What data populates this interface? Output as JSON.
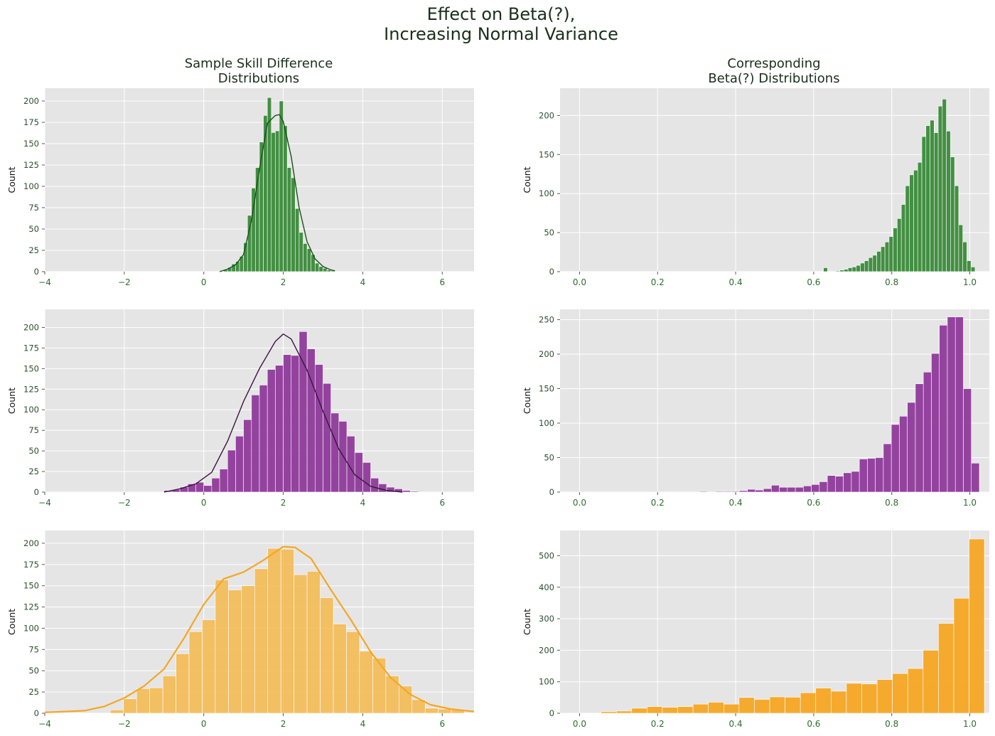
{
  "figure": {
    "title_line1": "Effect on Beta(?),",
    "title_line2": "Increasing Normal Variance",
    "left_col_title_line1": "Sample Skill Difference",
    "left_col_title_line2": "Distributions",
    "right_col_title_line1": "Corresponding",
    "right_col_title_line2": "Beta(?) Distributions"
  },
  "chart_data": [
    {
      "type": "bar",
      "panel": "top-left",
      "subtype": "histogram+kde",
      "color": "#3a8a3a",
      "line_color": "#1e4d1e",
      "ylabel": "Count",
      "xlim": [
        -4,
        6.8
      ],
      "ylim": [
        0,
        215
      ],
      "xticks": [
        -4,
        -2,
        0,
        2,
        4,
        6
      ],
      "yticks": [
        0,
        25,
        50,
        75,
        100,
        125,
        150,
        175,
        200
      ],
      "bin_start": 0.5,
      "bin_width": 0.1,
      "values": [
        2,
        5,
        9,
        12,
        18,
        34,
        66,
        98,
        122,
        152,
        183,
        204,
        163,
        165,
        200,
        171,
        122,
        110,
        74,
        46,
        33,
        27,
        20,
        10,
        6,
        4,
        2,
        1
      ],
      "kde": [
        [
          0.4,
          0
        ],
        [
          0.6,
          3
        ],
        [
          0.8,
          8
        ],
        [
          1.0,
          20
        ],
        [
          1.2,
          60
        ],
        [
          1.4,
          120
        ],
        [
          1.6,
          174
        ],
        [
          1.8,
          183
        ],
        [
          1.9,
          184
        ],
        [
          2.0,
          176
        ],
        [
          2.2,
          135
        ],
        [
          2.4,
          75
        ],
        [
          2.6,
          35
        ],
        [
          2.8,
          15
        ],
        [
          3.0,
          6
        ],
        [
          3.2,
          2
        ],
        [
          3.3,
          1
        ]
      ]
    },
    {
      "type": "bar",
      "panel": "middle-left",
      "subtype": "histogram+kde",
      "color": "#8e3a9a",
      "line_color": "#3a1440",
      "ylabel": "Count",
      "xlim": [
        -4,
        6.8
      ],
      "ylim": [
        0,
        222
      ],
      "xticks": [
        -4,
        -2,
        0,
        2,
        4,
        6
      ],
      "yticks": [
        0,
        25,
        50,
        75,
        100,
        125,
        150,
        175,
        200
      ],
      "bin_start": -1.0,
      "bin_width": 0.2,
      "values": [
        2,
        3,
        6,
        10,
        12,
        8,
        17,
        28,
        51,
        68,
        88,
        118,
        130,
        149,
        154,
        167,
        166,
        195,
        174,
        155,
        132,
        96,
        86,
        68,
        48,
        36,
        17,
        10,
        6,
        4,
        2,
        1
      ],
      "kde": [
        [
          -1.0,
          0
        ],
        [
          -0.6,
          4
        ],
        [
          -0.2,
          10
        ],
        [
          0.2,
          24
        ],
        [
          0.6,
          62
        ],
        [
          1.0,
          110
        ],
        [
          1.4,
          150
        ],
        [
          1.8,
          183
        ],
        [
          2.0,
          192
        ],
        [
          2.2,
          186
        ],
        [
          2.6,
          148
        ],
        [
          3.0,
          98
        ],
        [
          3.4,
          52
        ],
        [
          3.8,
          21
        ],
        [
          4.2,
          7
        ],
        [
          4.6,
          2
        ],
        [
          5.0,
          0
        ]
      ]
    },
    {
      "type": "bar",
      "panel": "bottom-left",
      "subtype": "histogram+kde",
      "color": "#f4b84b",
      "line_color": "#f5a623",
      "ylabel": "Count",
      "xlim": [
        -4,
        6.8
      ],
      "ylim": [
        0,
        215
      ],
      "xticks": [
        -4,
        -2,
        0,
        2,
        4,
        6
      ],
      "yticks": [
        0,
        25,
        50,
        75,
        100,
        125,
        150,
        175,
        200
      ],
      "bin_start": -2.35,
      "bin_width": 0.33,
      "values": [
        4,
        17,
        29,
        30,
        44,
        70,
        96,
        110,
        157,
        145,
        150,
        170,
        194,
        193,
        163,
        167,
        136,
        105,
        96,
        73,
        65,
        44,
        32,
        16,
        6,
        5,
        4
      ],
      "kde": [
        [
          -4.0,
          1
        ],
        [
          -3.0,
          3
        ],
        [
          -2.5,
          8
        ],
        [
          -2.0,
          18
        ],
        [
          -1.5,
          32
        ],
        [
          -1.0,
          52
        ],
        [
          -0.5,
          88
        ],
        [
          0,
          128
        ],
        [
          0.5,
          158
        ],
        [
          1.0,
          166
        ],
        [
          1.5,
          180
        ],
        [
          2.0,
          196
        ],
        [
          2.3,
          195
        ],
        [
          2.7,
          182
        ],
        [
          3.2,
          145
        ],
        [
          3.7,
          110
        ],
        [
          4.2,
          72
        ],
        [
          4.7,
          42
        ],
        [
          5.2,
          22
        ],
        [
          5.7,
          10
        ],
        [
          6.2,
          5
        ],
        [
          6.8,
          2
        ]
      ]
    },
    {
      "type": "bar",
      "panel": "top-right",
      "subtype": "histogram",
      "color": "#3a8a3a",
      "ylabel": "Count",
      "xlim": [
        -0.05,
        1.05
      ],
      "ylim": [
        0,
        235
      ],
      "xticks": [
        0.0,
        0.2,
        0.4,
        0.6,
        0.8,
        1.0
      ],
      "xtick_labels": [
        "0.0",
        "0.2",
        "0.4",
        "0.6",
        "0.8",
        "1.0"
      ],
      "yticks": [
        0,
        50,
        100,
        150,
        200
      ],
      "bin_start": 0.625,
      "bin_width": 0.0105,
      "values": [
        5,
        0,
        0,
        1,
        2,
        3,
        5,
        6,
        8,
        11,
        14,
        18,
        21,
        26,
        32,
        38,
        45,
        56,
        68,
        86,
        110,
        124,
        130,
        140,
        173,
        187,
        194,
        178,
        212,
        221,
        180,
        147,
        110,
        60,
        38,
        14,
        6
      ],
      "x_offset": 0
    },
    {
      "type": "bar",
      "panel": "middle-right",
      "subtype": "histogram",
      "color": "#8e3a9a",
      "ylabel": "Count",
      "xlim": [
        -0.05,
        1.05
      ],
      "ylim": [
        0,
        265
      ],
      "xticks": [
        0.0,
        0.2,
        0.4,
        0.6,
        0.8,
        1.0
      ],
      "xtick_labels": [
        "0.0",
        "0.2",
        "0.4",
        "0.6",
        "0.8",
        "1.0"
      ],
      "yticks": [
        0,
        50,
        100,
        150,
        200,
        250
      ],
      "bin_start": 0.02,
      "bin_width": 0.0205,
      "values": [
        0,
        0,
        0,
        0,
        0,
        0,
        0,
        0,
        0,
        0,
        0,
        0,
        0,
        0,
        1,
        0,
        1,
        1,
        1,
        2,
        4,
        3,
        5,
        10,
        7,
        7,
        7,
        9,
        11,
        15,
        24,
        23,
        28,
        30,
        48,
        49,
        50,
        70,
        98,
        110,
        130,
        157,
        174,
        201,
        242,
        254,
        254,
        150,
        42
      ],
      "x_offset": 0
    },
    {
      "type": "bar",
      "panel": "bottom-right",
      "subtype": "histogram",
      "color": "#f5a623",
      "ylabel": "Count",
      "xlim": [
        -0.05,
        1.05
      ],
      "ylim": [
        0,
        580
      ],
      "xticks": [
        0.0,
        0.2,
        0.4,
        0.6,
        0.8,
        1.0
      ],
      "xtick_labels": [
        "0.0",
        "0.2",
        "0.4",
        "0.6",
        "0.8",
        "1.0"
      ],
      "yticks": [
        0,
        100,
        200,
        300,
        400,
        500
      ],
      "bin_start": 0.055,
      "bin_width": 0.0393,
      "values": [
        5,
        7,
        16,
        21,
        19,
        21,
        29,
        35,
        29,
        50,
        44,
        52,
        51,
        65,
        80,
        70,
        95,
        93,
        107,
        126,
        142,
        200,
        285,
        365,
        553
      ],
      "x_offset": 0
    }
  ]
}
